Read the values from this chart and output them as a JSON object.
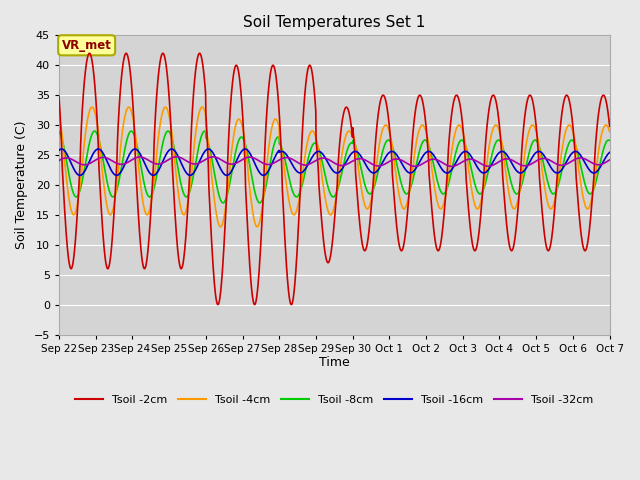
{
  "title": "Soil Temperatures Set 1",
  "xlabel": "Time",
  "ylabel": "Soil Temperature (C)",
  "ylim": [
    -5,
    45
  ],
  "background_color": "#e8e8e8",
  "plot_bg_color": "#d4d4d4",
  "grid_color": "#ffffff",
  "annotation_text": "VR_met",
  "annotation_bg": "#ffff99",
  "annotation_border": "#aaaa00",
  "x_tick_labels": [
    "Sep 22",
    "Sep 23",
    "Sep 24",
    "Sep 25",
    "Sep 26",
    "Sep 27",
    "Sep 28",
    "Sep 29",
    "Sep 30",
    "Oct 1",
    "Oct 2",
    "Oct 3",
    "Oct 4",
    "Oct 5",
    "Oct 6",
    "Oct 7"
  ],
  "series": {
    "Tsoil -2cm": {
      "color": "#cc0000",
      "linewidth": 1.2
    },
    "Tsoil -4cm": {
      "color": "#ff9900",
      "linewidth": 1.2
    },
    "Tsoil -8cm": {
      "color": "#00cc00",
      "linewidth": 1.2
    },
    "Tsoil -16cm": {
      "color": "#0000cc",
      "linewidth": 1.2
    },
    "Tsoil -32cm": {
      "color": "#aa00aa",
      "linewidth": 1.2
    }
  },
  "yticks": [
    -5,
    0,
    5,
    10,
    15,
    20,
    25,
    30,
    35,
    40,
    45
  ],
  "n_days": 15,
  "samples_per_day": 144,
  "figsize": [
    6.4,
    4.8
  ],
  "dpi": 100
}
